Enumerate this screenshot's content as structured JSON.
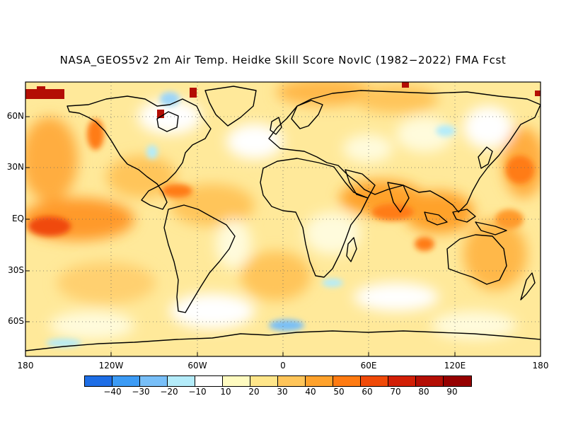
{
  "title": "NASA_GEOS5v2 2m Air Temp. Heidke Skill Score NovIC (1982−2022) FMA Fcst",
  "chart_data": {
    "type": "heatmap",
    "variable": "2m Air Temp. Heidke Skill Score",
    "projection": "equirectangular",
    "lon_range": [
      -180,
      180
    ],
    "lat_range": [
      -80,
      80
    ],
    "lat_ticks": [
      "60N",
      "30N",
      "EQ",
      "30S",
      "60S"
    ],
    "lat_values": [
      60,
      30,
      0,
      -30,
      -60
    ],
    "lon_ticks": [
      "180",
      "120W",
      "60W",
      "0",
      "60E",
      "120E",
      "180"
    ],
    "lon_values": [
      -180,
      -120,
      -60,
      0,
      60,
      120,
      180
    ],
    "colorbar": {
      "labels": [
        "−40",
        "−30",
        "−20",
        "−10",
        "10",
        "20",
        "30",
        "40",
        "50",
        "60",
        "70",
        "80",
        "90"
      ],
      "colors": [
        "#1e6ee6",
        "#3c9bf5",
        "#78bff8",
        "#b4ecfa",
        "#ffffff",
        "#fffbc0",
        "#ffe68a",
        "#ffc55a",
        "#ffa22c",
        "#ff7b12",
        "#f04a08",
        "#d21f06",
        "#b40e04",
        "#960000"
      ]
    },
    "grid": true
  },
  "colors": {
    "coast": "#000000",
    "grid": "#555555"
  }
}
